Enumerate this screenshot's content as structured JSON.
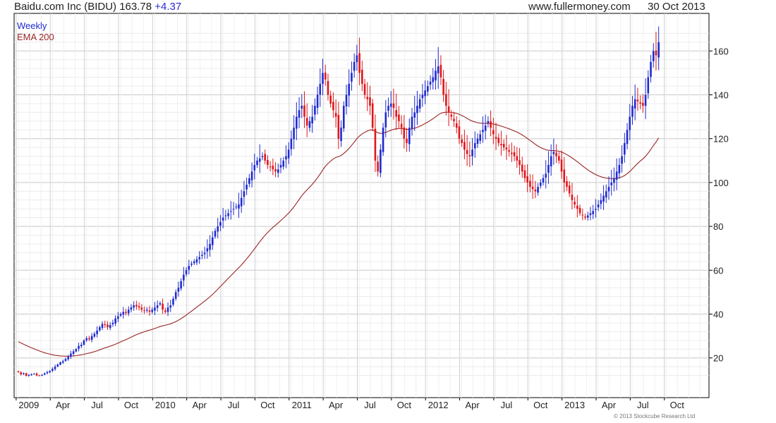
{
  "header": {
    "ticker": "Baidu.com Inc (BIDU) 163.78",
    "change": "+4.37",
    "site": "www.fullermoney.com",
    "date": "30 Oct 2013"
  },
  "copyright": "© 2013 Stockcube Research Ltd",
  "colors": {
    "up": "#1f2bd0",
    "down": "#e0161b",
    "ema": "#9b2323",
    "grid": "#c8c8c8"
  },
  "chart_data": {
    "type": "candlestick",
    "legend": [
      "Weekly",
      "EMA 200"
    ],
    "yticks": [
      20,
      40,
      60,
      80,
      100,
      120,
      140,
      160
    ],
    "ylim": [
      7,
      172
    ],
    "xlim": [
      0,
      261
    ],
    "xticks": [
      {
        "label": "2009",
        "week": 4
      },
      {
        "label": "Apr",
        "week": 17
      },
      {
        "label": "Jul",
        "week": 30
      },
      {
        "label": "Oct",
        "week": 43
      },
      {
        "label": "2010",
        "week": 56
      },
      {
        "label": "Apr",
        "week": 69
      },
      {
        "label": "Jul",
        "week": 82
      },
      {
        "label": "Oct",
        "week": 95
      },
      {
        "label": "2011",
        "week": 108
      },
      {
        "label": "Apr",
        "week": 121
      },
      {
        "label": "Jul",
        "week": 134
      },
      {
        "label": "Oct",
        "week": 147
      },
      {
        "label": "2012",
        "week": 160
      },
      {
        "label": "Apr",
        "week": 173
      },
      {
        "label": "Jul",
        "week": 186
      },
      {
        "label": "Oct",
        "week": 199
      },
      {
        "label": "2013",
        "week": 212
      },
      {
        "label": "Apr",
        "week": 225
      },
      {
        "label": "Jul",
        "week": 238
      },
      {
        "label": "Oct",
        "week": 251
      }
    ],
    "closes": [
      13.5,
      12.5,
      13,
      11.8,
      12.2,
      12.5,
      12.8,
      12,
      11.8,
      12.3,
      13,
      13.5,
      14,
      15,
      16,
      17,
      18,
      18.5,
      19.5,
      20.5,
      22,
      23,
      24,
      25.5,
      26,
      28,
      29,
      28.5,
      30,
      31,
      32.5,
      34,
      35.5,
      35,
      34,
      35,
      36,
      38,
      39,
      40,
      41,
      40.5,
      42,
      43,
      44,
      43.5,
      43,
      42,
      41.5,
      42,
      41,
      42,
      43,
      44,
      45,
      42,
      41,
      43,
      44,
      47,
      50,
      52,
      55,
      58,
      60,
      62,
      63,
      64,
      65,
      66,
      67,
      68,
      70,
      72,
      75,
      78,
      80,
      82,
      84,
      85,
      86,
      87,
      88,
      89,
      90,
      93,
      96,
      99,
      102,
      105,
      108,
      110,
      111,
      112,
      110,
      108,
      107,
      106,
      105,
      106,
      108,
      110,
      112,
      115,
      120,
      125,
      130,
      133,
      135,
      130,
      126,
      128,
      130,
      135,
      140,
      145,
      150,
      147,
      140,
      136,
      133,
      130,
      120,
      125,
      135,
      140,
      145,
      150,
      155,
      158,
      150,
      145,
      140,
      138,
      135,
      125,
      110,
      105,
      115,
      125,
      132,
      135,
      136,
      134,
      130,
      128,
      125,
      120,
      118,
      125,
      130,
      132,
      135,
      138,
      140,
      142,
      144,
      146,
      148,
      151,
      153,
      148,
      140,
      135,
      132,
      130,
      128,
      125,
      120,
      118,
      115,
      113,
      112,
      115,
      118,
      120,
      122,
      124,
      126,
      128,
      125,
      122,
      120,
      118,
      117,
      116,
      115,
      114,
      113,
      112,
      110,
      108,
      105,
      102,
      100,
      98,
      97,
      96,
      98,
      100,
      102,
      104,
      108,
      112,
      114,
      112,
      110,
      105,
      100,
      98,
      95,
      92,
      90,
      88,
      86,
      85,
      84,
      85,
      86,
      87,
      88,
      90,
      92,
      94,
      96,
      98,
      100,
      102,
      105,
      108,
      112,
      118,
      124,
      130,
      135,
      138,
      137,
      136,
      135,
      140,
      148,
      155,
      160,
      158,
      164
    ]
  }
}
